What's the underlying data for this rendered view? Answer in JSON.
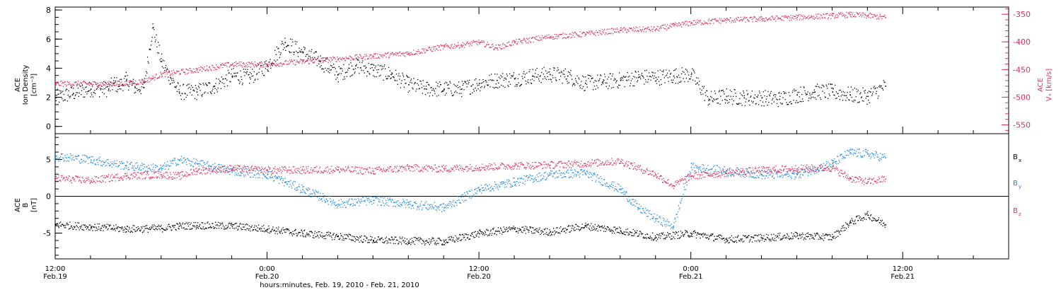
{
  "chart_data": [
    {
      "type": "scatter",
      "panel": "top",
      "ylabel_left": [
        "ACE",
        "Ion Density",
        "[cm⁻³]"
      ],
      "ylabel_right": [
        "ACE",
        "Vₓ [km/s]"
      ],
      "ylim_left": [
        -0.5,
        8.2
      ],
      "ylim_right": [
        -566,
        -337
      ],
      "left_ticks": [
        0,
        2,
        4,
        6,
        8
      ],
      "right_ticks": [
        -550,
        -500,
        -450,
        -400,
        -350
      ],
      "series": [
        {
          "axis": "left",
          "color": "#000000",
          "x": [
            0,
            1,
            2,
            3,
            3.3,
            3.6,
            4,
            4.5,
            5,
            5.5,
            6,
            6.5,
            7,
            8,
            9,
            10,
            11,
            12,
            13,
            14,
            15,
            16,
            17,
            18,
            19,
            20,
            21,
            22,
            23,
            24,
            25,
            26,
            27,
            28,
            29,
            30,
            31,
            32,
            33,
            34,
            35,
            36,
            37,
            38,
            39,
            40,
            41,
            42,
            43,
            44,
            45,
            46,
            47
          ],
          "y": [
            2.0,
            2.3,
            2.6,
            2.6,
            3.0,
            2.8,
            3.2,
            2.7,
            2.7,
            6.8,
            4.5,
            3.4,
            2.4,
            2.4,
            2.8,
            3.5,
            3.4,
            4.2,
            5.8,
            5.1,
            4.5,
            3.6,
            4.2,
            3.9,
            3.6,
            2.9,
            2.6,
            2.6,
            2.6,
            3.0,
            3.2,
            3.3,
            3.5,
            3.6,
            3.5,
            3.0,
            3.1,
            3.2,
            3.4,
            3.4,
            3.5,
            3.6,
            1.9,
            2.1,
            2.0,
            2.0,
            1.9,
            2.2,
            2.4,
            2.4,
            2.2,
            2.1,
            2.8
          ]
        },
        {
          "axis": "right",
          "color": "#e0305a",
          "x": [
            0,
            2,
            4,
            5,
            5.5,
            6,
            8,
            10,
            12,
            14,
            16,
            18,
            20,
            22,
            23,
            24,
            25,
            26,
            28,
            30,
            32,
            34,
            35,
            36,
            38,
            40,
            42,
            44,
            45,
            46,
            47
          ],
          "y": [
            -475,
            -475,
            -475,
            -470,
            -465,
            -458,
            -450,
            -440,
            -440,
            -435,
            -430,
            -425,
            -420,
            -408,
            -405,
            -400,
            -410,
            -400,
            -390,
            -385,
            -378,
            -376,
            -370,
            -365,
            -360,
            -358,
            -355,
            -352,
            -350,
            -352,
            -355
          ]
        }
      ]
    },
    {
      "type": "scatter",
      "panel": "bottom",
      "ylabel_left": [
        "ACE",
        "B",
        "[nT]"
      ],
      "ylim": [
        -8.5,
        8.5
      ],
      "left_ticks": [
        -5,
        0,
        5
      ],
      "legend": [
        "Bₓ",
        "Bᵧ",
        "B_z"
      ],
      "series": [
        {
          "name": "Bx",
          "color": "#000000",
          "x": [
            0,
            2,
            4,
            6,
            7,
            8,
            10,
            12,
            14,
            16,
            18,
            20,
            22,
            24,
            26,
            28,
            30,
            32,
            34,
            36,
            38,
            40,
            42,
            44,
            45,
            46,
            47
          ],
          "y": [
            -3.8,
            -4.1,
            -4.4,
            -4.3,
            -4.0,
            -3.9,
            -4.0,
            -4.4,
            -5.0,
            -5.4,
            -5.9,
            -6.0,
            -6.1,
            -5.0,
            -4.4,
            -4.8,
            -4.0,
            -4.6,
            -5.5,
            -5.0,
            -5.8,
            -5.6,
            -5.3,
            -5.5,
            -3.5,
            -2.5,
            -3.8
          ]
        },
        {
          "name": "By",
          "color": "#1e88e5",
          "x": [
            0,
            2,
            4,
            6,
            7,
            8,
            10,
            12,
            13,
            14,
            16,
            18,
            20,
            22,
            24,
            26,
            28,
            30,
            32,
            33,
            34,
            35,
            36,
            38,
            40,
            42,
            44,
            45,
            46,
            47
          ],
          "y": [
            5.5,
            5.0,
            4.2,
            3.8,
            5.0,
            4.5,
            3.5,
            3.0,
            2.0,
            1.0,
            -1.0,
            -0.5,
            -1.0,
            -1.5,
            1.0,
            2.0,
            3.0,
            3.2,
            1.0,
            -1.5,
            -3.0,
            -4.0,
            4.0,
            3.5,
            3.0,
            3.0,
            4.5,
            6.0,
            5.8,
            5.3
          ]
        },
        {
          "name": "Bz",
          "color": "#e0305a",
          "x": [
            0,
            2,
            4,
            6,
            7,
            8,
            10,
            12,
            14,
            16,
            18,
            20,
            22,
            24,
            26,
            28,
            30,
            32,
            34,
            35,
            36,
            38,
            40,
            42,
            44,
            45,
            46,
            47
          ],
          "y": [
            2.5,
            2.2,
            2.8,
            3.0,
            2.8,
            3.5,
            3.8,
            3.6,
            3.6,
            3.7,
            3.5,
            3.9,
            3.8,
            4.0,
            4.2,
            4.3,
            4.5,
            4.8,
            3.0,
            1.5,
            2.8,
            3.2,
            3.6,
            3.8,
            3.9,
            2.5,
            2.0,
            2.4
          ]
        }
      ]
    }
  ],
  "x_axis": {
    "range_hours": [
      0,
      54
    ],
    "major_ticks": [
      {
        "hour": 0,
        "time": "12:00",
        "date": "Feb.19"
      },
      {
        "hour": 12,
        "time": "0:00",
        "date": "Feb.20"
      },
      {
        "hour": 24,
        "time": "12:00",
        "date": "Feb.20"
      },
      {
        "hour": 36,
        "time": "0:00",
        "date": "Feb.21"
      },
      {
        "hour": 48,
        "time": "12:00",
        "date": "Feb.21"
      }
    ],
    "title": "hours:minutes, Feb. 19, 2010 - Feb. 21, 2010"
  },
  "legend_labels": {
    "bx": "B",
    "bx_sub": "x",
    "by": "B",
    "by_sub": "y",
    "bz": "B",
    "bz_sub": "z"
  },
  "colors": {
    "density": "#000000",
    "vx": "#e0305a",
    "bx": "#000000",
    "by": "#1e88e5",
    "bz": "#e0305a"
  }
}
